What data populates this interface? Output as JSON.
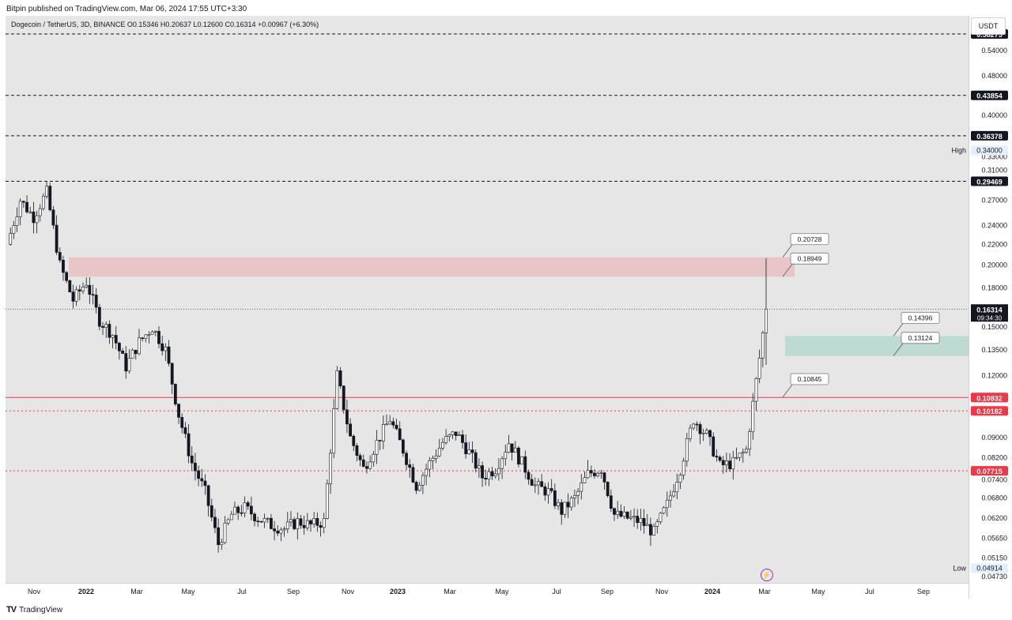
{
  "header": {
    "published": "Bitpin published on TradingView.com, Mar 06, 2024 17:55 UTC+3:30"
  },
  "symbol_line": "Dogecoin / TetherUS, 3D, BINANCE  O0.15346  H0.20637  L0.12600  C0.16314  +0.00967 (+6.30%)",
  "currency_button": "USDT",
  "footer": {
    "brand": "TradingView",
    "logo": "TV"
  },
  "icons": {
    "alert": "lightning-icon",
    "logo": "tradingview-logo-icon"
  },
  "colors": {
    "up": "#ffffff",
    "down": "#131722",
    "resistance_zone": "#e8bfc2",
    "support_zone": "#b5d8cf",
    "red_line": "#f23645",
    "dashed_black": "#131722",
    "alert_ring": "#9c27b0"
  },
  "chart_data": {
    "type": "candlestick",
    "title": "Dogecoin / TetherUS, 3D, BINANCE",
    "scale": "log",
    "ylim": [
      0.0473,
      0.62
    ],
    "x_labels": [
      "Nov",
      "2022",
      "Mar",
      "May",
      "Jul",
      "Sep",
      "Nov",
      "2023",
      "Mar",
      "May",
      "Jul",
      "Sep",
      "Nov",
      "2024",
      "Mar",
      "May",
      "Jul",
      "Sep"
    ],
    "y_ticks": [
      "0.60000",
      "0.54000",
      "0.48000",
      "0.43000",
      "0.40000",
      "0.37000",
      "0.34000",
      "0.33000",
      "0.31000",
      "0.27000",
      "0.24000",
      "0.22000",
      "0.20000",
      "0.18000",
      "0.15000",
      "0.13500",
      "0.12000",
      "0.09000",
      "0.08200",
      "0.07400",
      "0.06800",
      "0.06200",
      "0.05650",
      "0.05150",
      "0.04730"
    ],
    "price_levels": [
      {
        "label": "0.58275",
        "value": 0.58275,
        "style": "dashed",
        "color": "#131722"
      },
      {
        "label": "0.43854",
        "value": 0.43854,
        "style": "dashed",
        "color": "#131722"
      },
      {
        "label": "0.36378",
        "value": 0.36378,
        "style": "dashed",
        "color": "#131722"
      },
      {
        "label": "0.29469",
        "value": 0.29469,
        "style": "dashed",
        "color": "#131722"
      },
      {
        "label": "0.10832",
        "value": 0.10832,
        "style": "solid",
        "color": "#f23645"
      },
      {
        "label": "0.10182",
        "value": 0.10182,
        "style": "dashed",
        "color": "#f23645"
      },
      {
        "label": "0.07715",
        "value": 0.07715,
        "style": "dashed",
        "color": "#f23645"
      }
    ],
    "current_price": {
      "label": "0.16314",
      "countdown": "09:34:30",
      "value": 0.16314
    },
    "high": {
      "label": "High",
      "value_label": "0.34000",
      "value": 0.34
    },
    "low": {
      "label": "Low",
      "value_label": "0.04914",
      "value": 0.04914
    },
    "zones": [
      {
        "name": "resistance",
        "from": 0.18949,
        "to": 0.20728,
        "color": "#e8bfc2"
      },
      {
        "name": "support",
        "from": 0.13124,
        "to": 0.14396,
        "color": "#b5d8cf"
      }
    ],
    "annotations": [
      "0.20728",
      "0.18949",
      "0.14396",
      "0.13124",
      "0.10845"
    ],
    "price_path": [
      {
        "t": 0,
        "p": 0.22
      },
      {
        "t": 4,
        "p": 0.27
      },
      {
        "t": 8,
        "p": 0.25
      },
      {
        "t": 12,
        "p": 0.28
      },
      {
        "t": 16,
        "p": 0.2
      },
      {
        "t": 20,
        "p": 0.17
      },
      {
        "t": 24,
        "p": 0.185
      },
      {
        "t": 28,
        "p": 0.155
      },
      {
        "t": 32,
        "p": 0.145
      },
      {
        "t": 36,
        "p": 0.125
      },
      {
        "t": 40,
        "p": 0.14
      },
      {
        "t": 44,
        "p": 0.15
      },
      {
        "t": 48,
        "p": 0.135
      },
      {
        "t": 52,
        "p": 0.1
      },
      {
        "t": 56,
        "p": 0.08
      },
      {
        "t": 60,
        "p": 0.07
      },
      {
        "t": 64,
        "p": 0.055
      },
      {
        "t": 68,
        "p": 0.063
      },
      {
        "t": 72,
        "p": 0.065
      },
      {
        "t": 76,
        "p": 0.062
      },
      {
        "t": 80,
        "p": 0.06
      },
      {
        "t": 84,
        "p": 0.059
      },
      {
        "t": 88,
        "p": 0.061
      },
      {
        "t": 92,
        "p": 0.06
      },
      {
        "t": 96,
        "p": 0.061
      },
      {
        "t": 100,
        "p": 0.12
      },
      {
        "t": 104,
        "p": 0.09
      },
      {
        "t": 108,
        "p": 0.078
      },
      {
        "t": 112,
        "p": 0.088
      },
      {
        "t": 116,
        "p": 0.098
      },
      {
        "t": 120,
        "p": 0.085
      },
      {
        "t": 124,
        "p": 0.072
      },
      {
        "t": 128,
        "p": 0.08
      },
      {
        "t": 132,
        "p": 0.088
      },
      {
        "t": 136,
        "p": 0.092
      },
      {
        "t": 140,
        "p": 0.084
      },
      {
        "t": 144,
        "p": 0.075
      },
      {
        "t": 148,
        "p": 0.078
      },
      {
        "t": 152,
        "p": 0.088
      },
      {
        "t": 156,
        "p": 0.08
      },
      {
        "t": 160,
        "p": 0.072
      },
      {
        "t": 164,
        "p": 0.07
      },
      {
        "t": 168,
        "p": 0.064
      },
      {
        "t": 172,
        "p": 0.068
      },
      {
        "t": 176,
        "p": 0.076
      },
      {
        "t": 180,
        "p": 0.078
      },
      {
        "t": 184,
        "p": 0.063
      },
      {
        "t": 188,
        "p": 0.062
      },
      {
        "t": 192,
        "p": 0.061
      },
      {
        "t": 196,
        "p": 0.058
      },
      {
        "t": 200,
        "p": 0.066
      },
      {
        "t": 204,
        "p": 0.078
      },
      {
        "t": 208,
        "p": 0.098
      },
      {
        "t": 212,
        "p": 0.091
      },
      {
        "t": 216,
        "p": 0.079
      },
      {
        "t": 220,
        "p": 0.08
      },
      {
        "t": 224,
        "p": 0.085
      },
      {
        "t": 228,
        "p": 0.13
      },
      {
        "t": 230,
        "p": 0.163
      }
    ]
  }
}
